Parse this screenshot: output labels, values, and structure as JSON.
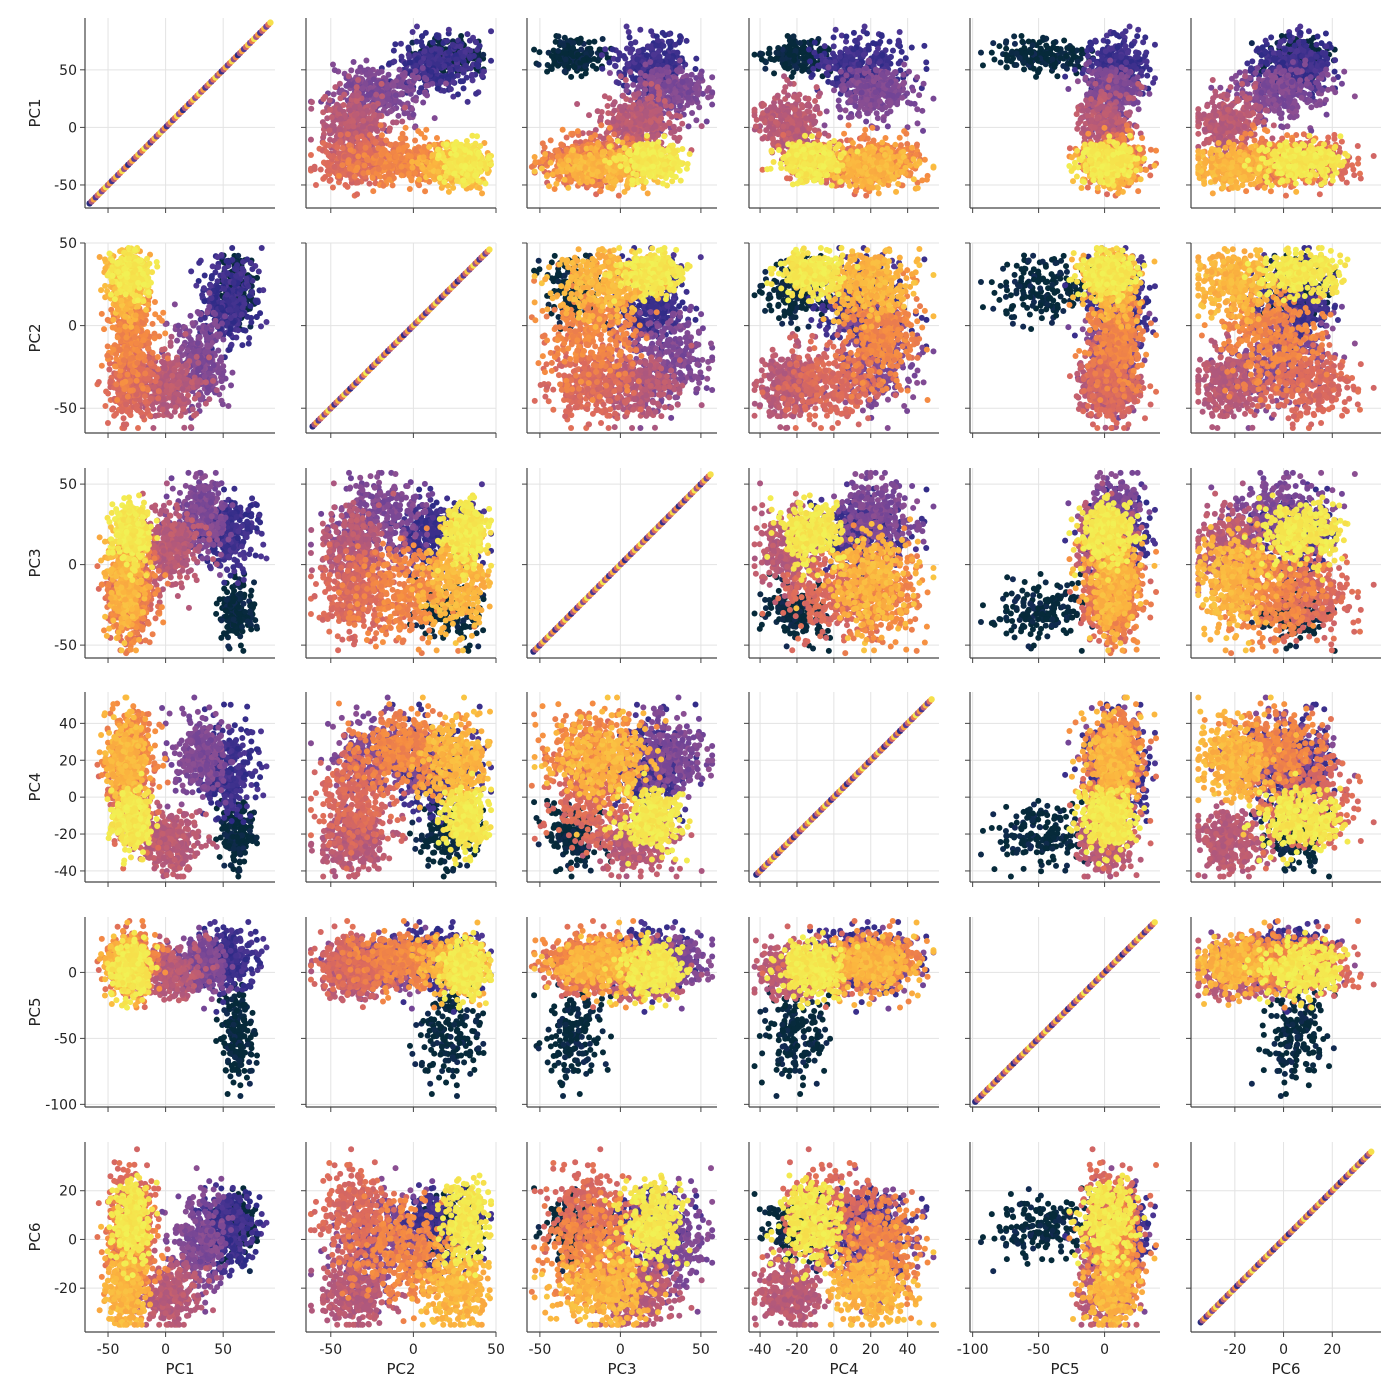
{
  "chart_data": {
    "type": "scatter",
    "layout": "pair-grid",
    "variables": [
      "PC1",
      "PC2",
      "PC3",
      "PC4",
      "PC5",
      "PC6"
    ],
    "diagonal": "identity-line",
    "grid": true,
    "colormap": [
      "#062a3a",
      "#2c2a86",
      "#5e3c99",
      "#8c4f92",
      "#b75a78",
      "#dd6b5c",
      "#f58b42",
      "#fbb53f",
      "#f6e04b",
      "#eefc5a"
    ],
    "ranges": {
      "PC1": [
        -70,
        95
      ],
      "PC2": [
        -65,
        50
      ],
      "PC3": [
        -58,
        60
      ],
      "PC4": [
        -46,
        57
      ],
      "PC5": [
        -102,
        42
      ],
      "PC6": [
        -38,
        40
      ]
    },
    "ticks": {
      "PC1": [
        -50,
        0,
        50
      ],
      "PC2": [
        -50,
        0,
        50
      ],
      "PC3": [
        -50,
        0,
        50
      ],
      "PC4": [
        -40,
        -20,
        0,
        20,
        40
      ],
      "PC5": [
        -100,
        -50,
        0
      ],
      "PC6": [
        -20,
        0,
        20
      ]
    },
    "ytick_labels": {
      "PC1": [
        "50",
        "0",
        "-50"
      ],
      "PC2": [
        "50",
        "0",
        "-50"
      ],
      "PC3": [
        "50",
        "0",
        "-50"
      ],
      "PC4": [
        "40",
        "20",
        "0",
        "-20",
        "-40"
      ],
      "PC5": [
        "0",
        "-50",
        "-100"
      ],
      "PC6": [
        "20",
        "0",
        "-20"
      ]
    },
    "ytick_values": {
      "PC1": [
        50,
        0,
        -50
      ],
      "PC2": [
        50,
        0,
        -50
      ],
      "PC3": [
        50,
        0,
        -50
      ],
      "PC4": [
        40,
        20,
        0,
        -20,
        -40
      ],
      "PC5": [
        0,
        -50,
        -100
      ],
      "PC6": [
        20,
        0,
        -20
      ]
    },
    "xtick_labels": {
      "PC1": [
        "-50",
        "0",
        "50"
      ],
      "PC2": [
        "-50",
        "0",
        "50"
      ],
      "PC3": [
        "-50",
        "0",
        "50"
      ],
      "PC4": [
        "-40",
        "-20",
        "0",
        "20",
        "40"
      ],
      "PC5": [
        "-100",
        "-50",
        "0"
      ],
      "PC6": [
        "-20",
        "0",
        "20"
      ]
    },
    "clusters": [
      {
        "c": 0.0,
        "n": 180,
        "mean": [
          62,
          22,
          -30,
          -20,
          -45,
          5
        ],
        "sd": [
          8,
          10,
          9,
          8,
          20,
          6
        ]
      },
      {
        "c": 0.15,
        "n": 320,
        "mean": [
          55,
          15,
          20,
          15,
          10,
          5
        ],
        "sd": [
          12,
          12,
          12,
          12,
          10,
          8
        ]
      },
      {
        "c": 0.3,
        "n": 300,
        "mean": [
          30,
          -20,
          30,
          22,
          5,
          0
        ],
        "sd": [
          12,
          14,
          12,
          10,
          10,
          10
        ]
      },
      {
        "c": 0.45,
        "n": 300,
        "mean": [
          5,
          -35,
          10,
          -25,
          0,
          -22
        ],
        "sd": [
          14,
          10,
          12,
          8,
          10,
          7
        ]
      },
      {
        "c": 0.55,
        "n": 300,
        "mean": [
          -30,
          -35,
          -20,
          0,
          5,
          10
        ],
        "sd": [
          10,
          12,
          12,
          14,
          10,
          10
        ]
      },
      {
        "c": 0.65,
        "n": 300,
        "mean": [
          -30,
          -5,
          -15,
          25,
          8,
          -5
        ],
        "sd": [
          10,
          15,
          14,
          10,
          10,
          10
        ]
      },
      {
        "c": 0.78,
        "n": 320,
        "mean": [
          -35,
          25,
          -10,
          20,
          5,
          -20
        ],
        "sd": [
          8,
          10,
          15,
          12,
          10,
          7
        ]
      },
      {
        "c": 0.92,
        "n": 300,
        "mean": [
          -30,
          32,
          20,
          -12,
          2,
          8
        ],
        "sd": [
          8,
          6,
          10,
          8,
          10,
          8
        ]
      }
    ]
  }
}
